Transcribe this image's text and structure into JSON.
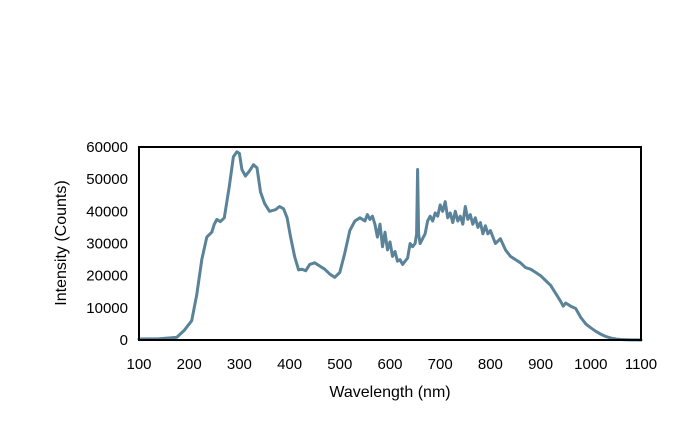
{
  "chart_data": {
    "type": "line",
    "title": "",
    "xlabel": "Wavelength (nm)",
    "ylabel": "Intensity (Counts)",
    "xlim": [
      100,
      1100
    ],
    "ylim": [
      0,
      60000
    ],
    "grid": false,
    "x_ticks": [
      100,
      200,
      300,
      400,
      500,
      600,
      700,
      800,
      900,
      1000,
      1100
    ],
    "y_ticks": [
      0,
      10000,
      20000,
      30000,
      40000,
      50000,
      60000
    ],
    "line_color": "#5a8399",
    "series": [
      {
        "x": [
          100,
          140,
          175,
          190,
          205,
          215,
          225,
          235,
          245,
          250,
          255,
          262,
          270,
          280,
          288,
          295,
          300,
          305,
          312,
          320,
          328,
          335,
          342,
          350,
          360,
          372,
          380,
          388,
          395,
          402,
          410,
          418,
          425,
          432,
          440,
          450,
          460,
          470,
          480,
          490,
          500,
          510,
          520,
          530,
          540,
          550,
          555,
          560,
          565,
          570,
          575,
          580,
          585,
          590,
          595,
          600,
          605,
          610,
          615,
          620,
          625,
          630,
          635,
          640,
          645,
          650,
          653,
          655,
          657,
          660,
          665,
          670,
          675,
          680,
          685,
          690,
          695,
          700,
          705,
          710,
          715,
          720,
          725,
          730,
          735,
          740,
          745,
          750,
          755,
          760,
          765,
          770,
          775,
          780,
          785,
          790,
          795,
          800,
          810,
          820,
          830,
          840,
          850,
          860,
          870,
          880,
          890,
          900,
          910,
          920,
          930,
          940,
          945,
          950,
          960,
          970,
          980,
          990,
          1000,
          1010,
          1020,
          1030,
          1040,
          1050,
          1060,
          1070,
          1080,
          1090,
          1100
        ],
        "y": [
          300,
          400,
          800,
          3000,
          6000,
          14000,
          25000,
          32000,
          33500,
          36000,
          37500,
          36800,
          38000,
          48000,
          57000,
          58500,
          58000,
          53000,
          51000,
          52500,
          54500,
          53500,
          46000,
          42500,
          40000,
          40500,
          41500,
          40800,
          38000,
          32000,
          26000,
          21800,
          22000,
          21500,
          23500,
          24000,
          23000,
          22000,
          20500,
          19500,
          21000,
          27000,
          34000,
          37000,
          38000,
          37000,
          39000,
          37500,
          38500,
          36000,
          32000,
          36000,
          29000,
          33500,
          28000,
          30500,
          26000,
          27500,
          24500,
          25000,
          23500,
          24500,
          25500,
          30000,
          29000,
          30000,
          33000,
          53000,
          33000,
          30000,
          31500,
          33000,
          37000,
          38500,
          37000,
          39500,
          38500,
          42000,
          40000,
          43000,
          38000,
          39500,
          36500,
          40000,
          37000,
          38500,
          36000,
          41500,
          37500,
          39000,
          36000,
          38000,
          35000,
          36500,
          33000,
          35500,
          33000,
          34000,
          30000,
          31500,
          28000,
          26000,
          25000,
          24000,
          22500,
          22000,
          21000,
          20000,
          18500,
          17000,
          14500,
          12000,
          10500,
          11500,
          10500,
          9800,
          7000,
          5000,
          3800,
          2700,
          1800,
          1100,
          600,
          300,
          150,
          80,
          40,
          20,
          0
        ]
      }
    ]
  }
}
